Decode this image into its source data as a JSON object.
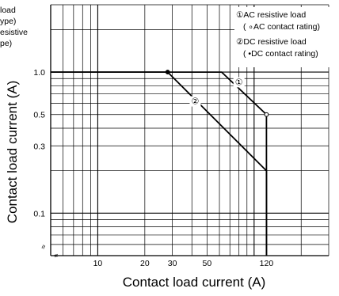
{
  "chart_data": {
    "type": "line",
    "xlabel": "Contact load current (A)",
    "ylabel": "Contact load current (A)",
    "x_scale": "log",
    "y_scale": "log",
    "xlim": [
      5,
      300
    ],
    "ylim": [
      0.05,
      3
    ],
    "x_ticks": [
      {
        "value": 10,
        "label": "10"
      },
      {
        "value": 20,
        "label": "20"
      },
      {
        "value": 30,
        "label": "30"
      },
      {
        "value": 50,
        "label": "50"
      },
      {
        "value": 120,
        "label": "120"
      }
    ],
    "y_ticks": [
      {
        "value": 1.0,
        "label": "1.0"
      },
      {
        "value": 0.5,
        "label": "0.5"
      },
      {
        "value": 0.3,
        "label": "0.3"
      },
      {
        "value": 0.1,
        "label": "0.1"
      }
    ],
    "grid": true,
    "legend_position": "top-right",
    "legend": [
      {
        "symbol": "①",
        "title": "AC resistive load",
        "detail": "( ∘AC contact rating)"
      },
      {
        "symbol": "②",
        "title": "DC resistive load",
        "detail": "( •DC contact rating)"
      }
    ],
    "cut_label_left": [
      {
        "text": "load"
      },
      {
        "text": "ype)"
      },
      {
        "text": "esistive"
      },
      {
        "text": "pe)"
      }
    ],
    "series": [
      {
        "name": "①",
        "points": [
          [
            5,
            1.0
          ],
          [
            62,
            1.0
          ],
          [
            120,
            0.5
          ],
          [
            120,
            0.05
          ]
        ],
        "marker": {
          "x": 120,
          "y": 0.5,
          "style": "open"
        }
      },
      {
        "name": "②",
        "points": [
          [
            5,
            1.0
          ],
          [
            28,
            1.0
          ],
          [
            120,
            0.2
          ],
          [
            120,
            0.05
          ]
        ],
        "marker": {
          "x": 28,
          "y": 1.0,
          "style": "filled"
        }
      }
    ],
    "curve_labels": [
      {
        "text": "①",
        "x": 80,
        "y": 0.82
      },
      {
        "text": "②",
        "x": 42,
        "y": 0.6
      }
    ],
    "axis_break_symbol": "≈"
  }
}
